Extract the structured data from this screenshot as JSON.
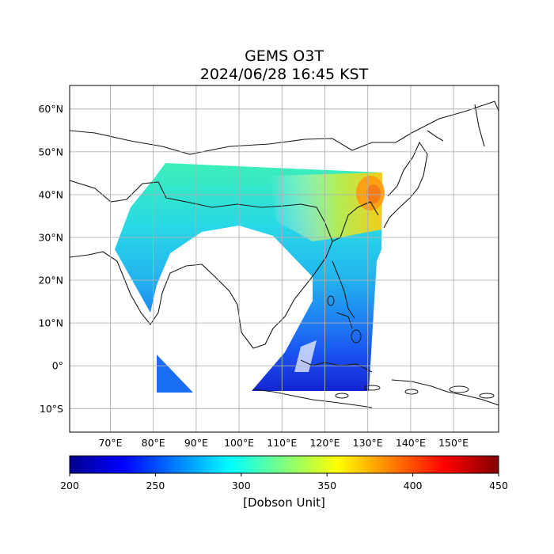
{
  "title_line1": "GEMS O3T",
  "title_line2": "2024/06/28 16:45 KST",
  "map": {
    "lon_range": [
      60.5,
      160.5
    ],
    "lat_range": [
      -15.5,
      65.5
    ],
    "lon_ticks": [
      {
        "value": 70,
        "label": "70°E"
      },
      {
        "value": 80,
        "label": "80°E"
      },
      {
        "value": 90,
        "label": "90°E"
      },
      {
        "value": 100,
        "label": "100°E"
      },
      {
        "value": 110,
        "label": "110°E"
      },
      {
        "value": 120,
        "label": "120°E"
      },
      {
        "value": 130,
        "label": "130°E"
      },
      {
        "value": 140,
        "label": "140°E"
      },
      {
        "value": 150,
        "label": "150°E"
      }
    ],
    "lat_ticks": [
      {
        "value": 60,
        "label": "60°N"
      },
      {
        "value": 50,
        "label": "50°N"
      },
      {
        "value": 40,
        "label": "40°N"
      },
      {
        "value": 30,
        "label": "30°N"
      },
      {
        "value": 20,
        "label": "20°N"
      },
      {
        "value": 10,
        "label": "10°N"
      },
      {
        "value": 0,
        "label": "0°"
      },
      {
        "value": -10,
        "label": "10°S"
      }
    ],
    "gridlines": true
  },
  "colorbar": {
    "min": 200,
    "max": 450,
    "ticks": [
      "200",
      "250",
      "300",
      "350",
      "400",
      "450"
    ],
    "label": "[Dobson Unit]",
    "colormap": "jet"
  }
}
